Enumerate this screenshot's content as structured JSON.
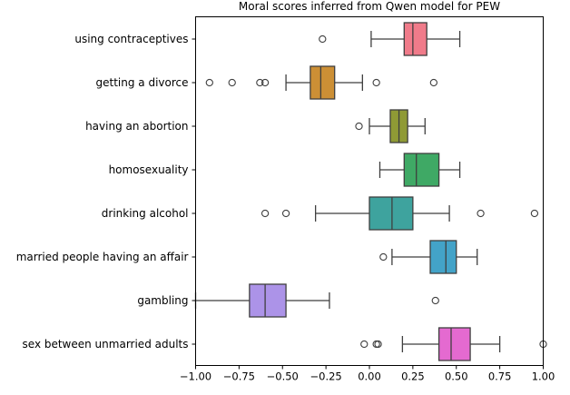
{
  "chart_data": {
    "type": "boxplot",
    "orientation": "horizontal",
    "title": "Moral scores inferred from Qwen model for PEW",
    "xlabel": "",
    "ylabel": "",
    "xlim": [
      -1.0,
      1.0
    ],
    "xticks": [
      -1.0,
      -0.75,
      -0.5,
      -0.25,
      0.0,
      0.25,
      0.5,
      0.75,
      1.0
    ],
    "xtick_labels": [
      "−1.00",
      "−0.75",
      "−0.50",
      "−0.25",
      "0.00",
      "0.25",
      "0.50",
      "0.75",
      "1.00"
    ],
    "grid": false,
    "legend": "none",
    "categories": [
      "using contraceptives",
      "getting a divorce",
      "having an abortion",
      "homosexuality",
      "drinking alcohol",
      "married people having an affair",
      "gambling",
      "sex between unmarried adults"
    ],
    "colors": [
      "#f07b8a",
      "#cc8f35",
      "#8f9a35",
      "#3fa965",
      "#3ea39e",
      "#43a3c8",
      "#ac93e8",
      "#e46ad0"
    ],
    "boxes": [
      {
        "whislo": 0.01,
        "q1": 0.2,
        "med": 0.25,
        "q3": 0.33,
        "whishi": 0.52,
        "fliers": [
          -0.27
        ]
      },
      {
        "whislo": -0.48,
        "q1": -0.34,
        "med": -0.28,
        "q3": -0.2,
        "whishi": -0.04,
        "fliers": [
          -0.92,
          -0.79,
          -0.63,
          -0.6,
          0.04,
          0.37
        ]
      },
      {
        "whislo": 0.0,
        "q1": 0.12,
        "med": 0.17,
        "q3": 0.22,
        "whishi": 0.32,
        "fliers": [
          -0.06
        ]
      },
      {
        "whislo": 0.06,
        "q1": 0.2,
        "med": 0.27,
        "q3": 0.4,
        "whishi": 0.52,
        "fliers": []
      },
      {
        "whislo": -0.31,
        "q1": 0.0,
        "med": 0.13,
        "q3": 0.25,
        "whishi": 0.46,
        "fliers": [
          -0.6,
          -0.48,
          0.64,
          0.95
        ]
      },
      {
        "whislo": 0.13,
        "q1": 0.35,
        "med": 0.44,
        "q3": 0.5,
        "whishi": 0.62,
        "fliers": [
          0.08
        ]
      },
      {
        "whislo": -1.0,
        "q1": -0.69,
        "med": -0.6,
        "q3": -0.48,
        "whishi": -0.23,
        "fliers": [
          0.38
        ]
      },
      {
        "whislo": 0.19,
        "q1": 0.4,
        "med": 0.47,
        "q3": 0.58,
        "whishi": 0.75,
        "fliers": [
          -0.03,
          0.04,
          0.05,
          1.0
        ]
      }
    ]
  }
}
